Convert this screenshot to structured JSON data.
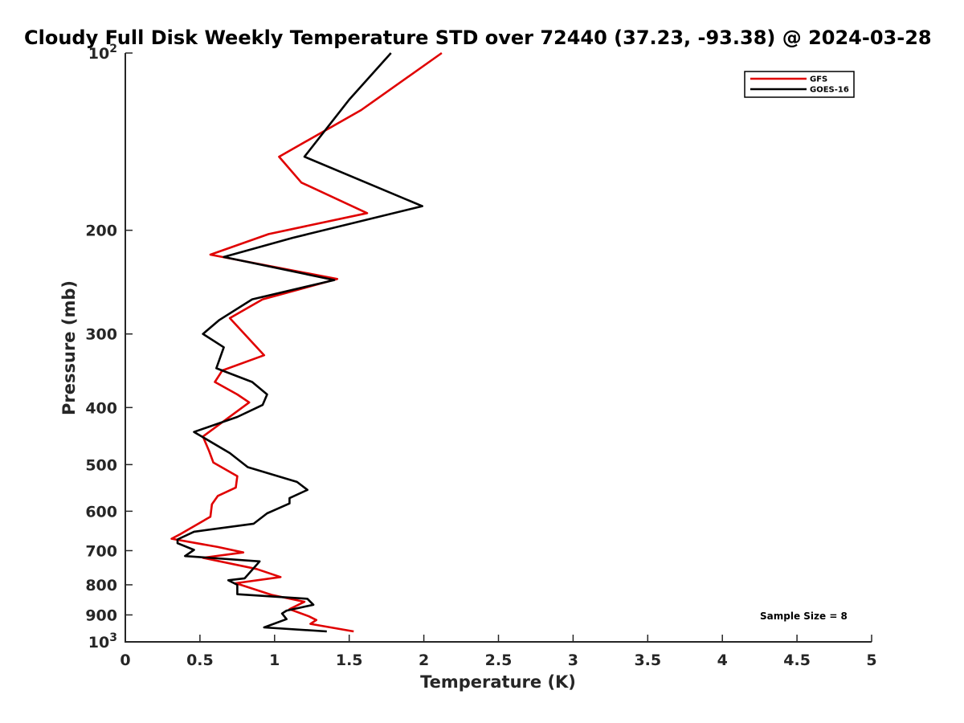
{
  "chart_data": {
    "type": "line",
    "title": "Cloudy Full Disk Weekly Temperature STD over 72440 (37.23, -93.38) @ 2024-03-28",
    "xlabel": "Temperature (K)",
    "ylabel": "Pressure (mb)",
    "xlim": [
      0,
      5
    ],
    "ylim": [
      1000,
      100
    ],
    "yscale": "log",
    "y_reversed": true,
    "grid": false,
    "legend_position": "top-right",
    "x_ticks": [
      0,
      0.5,
      1,
      1.5,
      2,
      2.5,
      3,
      3.5,
      4,
      4.5,
      5
    ],
    "x_tick_labels": [
      "0",
      "0.5",
      "1",
      "1.5",
      "2",
      "2.5",
      "3",
      "3.5",
      "4",
      "4.5",
      "5"
    ],
    "y_ticks": [
      100,
      200,
      300,
      400,
      500,
      600,
      700,
      800,
      900,
      1000
    ],
    "y_tick_labels": [
      {
        "base": "10",
        "exp": "2"
      },
      {
        "base": "200",
        "exp": ""
      },
      {
        "base": "300",
        "exp": ""
      },
      {
        "base": "400",
        "exp": ""
      },
      {
        "base": "500",
        "exp": ""
      },
      {
        "base": "600",
        "exp": ""
      },
      {
        "base": "700",
        "exp": ""
      },
      {
        "base": "800",
        "exp": ""
      },
      {
        "base": "900",
        "exp": ""
      },
      {
        "base": "10",
        "exp": "3"
      }
    ],
    "series": [
      {
        "name": "GFS",
        "color": "#e00000",
        "points": [
          [
            2.12,
            100
          ],
          [
            1.58,
            125
          ],
          [
            1.03,
            150
          ],
          [
            1.18,
            166
          ],
          [
            1.62,
            187
          ],
          [
            0.96,
            203
          ],
          [
            0.57,
            220
          ],
          [
            1.42,
            242
          ],
          [
            0.92,
            262
          ],
          [
            0.7,
            282
          ],
          [
            0.93,
            326
          ],
          [
            0.65,
            346
          ],
          [
            0.6,
            362
          ],
          [
            0.75,
            380
          ],
          [
            0.83,
            392
          ],
          [
            0.52,
            448
          ],
          [
            0.56,
            473
          ],
          [
            0.59,
            496
          ],
          [
            0.75,
            523
          ],
          [
            0.74,
            547
          ],
          [
            0.62,
            565
          ],
          [
            0.58,
            584
          ],
          [
            0.57,
            613
          ],
          [
            0.37,
            656
          ],
          [
            0.31,
            668
          ],
          [
            0.62,
            690
          ],
          [
            0.79,
            705
          ],
          [
            0.52,
            720
          ],
          [
            0.88,
            752
          ],
          [
            1.04,
            776
          ],
          [
            0.74,
            795
          ],
          [
            0.98,
            832
          ],
          [
            1.2,
            855
          ],
          [
            1.1,
            880
          ],
          [
            1.23,
            905
          ],
          [
            1.28,
            918
          ],
          [
            1.24,
            932
          ],
          [
            1.53,
            960
          ]
        ]
      },
      {
        "name": "GOES-16",
        "color": "#000000",
        "points": [
          [
            1.78,
            100
          ],
          [
            1.5,
            120
          ],
          [
            1.2,
            150
          ],
          [
            1.99,
            182
          ],
          [
            1.12,
            206
          ],
          [
            0.66,
            222
          ],
          [
            1.4,
            243
          ],
          [
            0.85,
            262
          ],
          [
            0.63,
            284
          ],
          [
            0.52,
            300
          ],
          [
            0.66,
            316
          ],
          [
            0.61,
            343
          ],
          [
            0.85,
            362
          ],
          [
            0.95,
            380
          ],
          [
            0.92,
            396
          ],
          [
            0.75,
            415
          ],
          [
            0.46,
            440
          ],
          [
            0.7,
            478
          ],
          [
            0.82,
            505
          ],
          [
            1.15,
            535
          ],
          [
            1.22,
            552
          ],
          [
            1.1,
            570
          ],
          [
            1.1,
            582
          ],
          [
            0.95,
            605
          ],
          [
            0.86,
            630
          ],
          [
            0.46,
            650
          ],
          [
            0.35,
            670
          ],
          [
            0.35,
            680
          ],
          [
            0.46,
            698
          ],
          [
            0.4,
            715
          ],
          [
            0.9,
            730
          ],
          [
            0.8,
            780
          ],
          [
            0.69,
            786
          ],
          [
            0.75,
            800
          ],
          [
            0.75,
            830
          ],
          [
            1.22,
            845
          ],
          [
            1.26,
            865
          ],
          [
            1.08,
            885
          ],
          [
            1.05,
            895
          ],
          [
            1.08,
            915
          ],
          [
            0.93,
            945
          ],
          [
            1.35,
            960
          ]
        ]
      }
    ],
    "annotation": "Sample Size = 8"
  }
}
